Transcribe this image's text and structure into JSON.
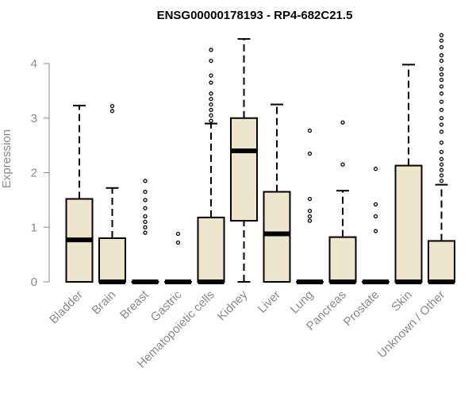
{
  "chart_data": {
    "type": "boxplot",
    "title": "ENSG00000178193 - RP4-682C21.5",
    "ylabel": "Expression",
    "xlabel": "",
    "ylim": [
      0,
      4.6
    ],
    "yticks": [
      0,
      1,
      2,
      3,
      4
    ],
    "box_fill": "#ede6cc",
    "categories": [
      "Bladder",
      "Brain",
      "Breast",
      "Gastric",
      "Hematopoietic cells",
      "Kidney",
      "Liver",
      "Lung",
      "Pancreas",
      "Prostate",
      "Skin",
      "Unknown / Other"
    ],
    "boxes": [
      {
        "category": "Bladder",
        "whisker_low": 0,
        "q1": 0,
        "median": 0.77,
        "q3": 1.52,
        "whisker_high": 3.23,
        "outliers": []
      },
      {
        "category": "Brain",
        "whisker_low": 0,
        "q1": 0,
        "median": 0,
        "q3": 0.8,
        "whisker_high": 1.72,
        "outliers": [
          3.13,
          3.22
        ]
      },
      {
        "category": "Breast",
        "whisker_low": 0,
        "q1": 0,
        "median": 0,
        "q3": 0,
        "whisker_high": 0,
        "outliers": [
          0.9,
          1.0,
          1.1,
          1.2,
          1.35,
          1.5,
          1.65,
          1.85
        ]
      },
      {
        "category": "Gastric",
        "whisker_low": 0,
        "q1": 0,
        "median": 0,
        "q3": 0,
        "whisker_high": 0,
        "outliers": [
          0.72,
          0.88
        ]
      },
      {
        "category": "Hematopoietic cells",
        "whisker_low": 0,
        "q1": 0,
        "median": 0,
        "q3": 1.18,
        "whisker_high": 2.9,
        "outliers": [
          2.95,
          3.05,
          3.15,
          3.25,
          3.35,
          3.45,
          3.65,
          3.78,
          4.05,
          4.25
        ]
      },
      {
        "category": "Kidney",
        "whisker_low": 0,
        "q1": 1.12,
        "median": 2.4,
        "q3": 3.0,
        "whisker_high": 4.45,
        "outliers": []
      },
      {
        "category": "Liver",
        "whisker_low": 0,
        "q1": 0,
        "median": 0.88,
        "q3": 1.65,
        "whisker_high": 3.25,
        "outliers": []
      },
      {
        "category": "Lung",
        "whisker_low": 0,
        "q1": 0,
        "median": 0,
        "q3": 0,
        "whisker_high": 0,
        "outliers": [
          1.12,
          1.2,
          1.3,
          1.52,
          2.35,
          2.77
        ]
      },
      {
        "category": "Pancreas",
        "whisker_low": 0,
        "q1": 0,
        "median": 0,
        "q3": 0.82,
        "whisker_high": 1.67,
        "outliers": [
          2.15,
          2.92
        ]
      },
      {
        "category": "Prostate",
        "whisker_low": 0,
        "q1": 0,
        "median": 0,
        "q3": 0,
        "whisker_high": 0,
        "outliers": [
          0.93,
          1.2,
          1.42,
          2.07
        ]
      },
      {
        "category": "Skin",
        "whisker_low": 0,
        "q1": 0,
        "median": 0,
        "q3": 2.13,
        "whisker_high": 3.98,
        "outliers": []
      },
      {
        "category": "Unknown / Other",
        "whisker_low": 0,
        "q1": 0,
        "median": 0,
        "q3": 0.75,
        "whisker_high": 1.78,
        "outliers": [
          1.85,
          1.95,
          2.05,
          2.15,
          2.25,
          2.38,
          2.55,
          2.75,
          2.88,
          3.0,
          3.15,
          3.3,
          3.45,
          3.58,
          3.7,
          3.8,
          3.9,
          4.05,
          4.15,
          4.3,
          4.42,
          4.52
        ]
      }
    ]
  }
}
